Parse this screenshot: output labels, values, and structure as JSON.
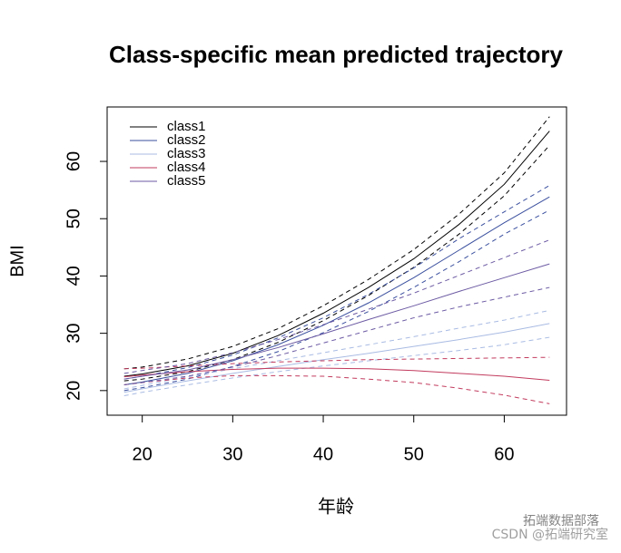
{
  "chart_data": {
    "type": "line",
    "title": "Class-specific mean predicted trajectory",
    "x_label": "年龄",
    "y_label": "BMI",
    "x": [
      18,
      20,
      25,
      30,
      35,
      40,
      45,
      50,
      55,
      60,
      65
    ],
    "series": [
      {
        "name": "class1",
        "color": "#000000",
        "values": [
          22.5,
          22.9,
          24.3,
          26.5,
          29.6,
          33.5,
          38,
          43,
          49,
          56,
          65.3
        ],
        "upper": [
          23.8,
          24.1,
          25.5,
          27.7,
          30.8,
          34.8,
          39.4,
          44.6,
          50.8,
          58,
          67.8
        ],
        "lower": [
          21.7,
          22,
          23.3,
          25.4,
          28.4,
          32.2,
          36.6,
          41.5,
          47.3,
          54,
          62.8
        ]
      },
      {
        "name": "class2",
        "color": "#3a4f9e",
        "values": [
          21,
          21.5,
          23,
          25.2,
          28,
          31.4,
          35.3,
          39.7,
          44.5,
          49.3,
          53.8
        ],
        "upper": [
          22,
          22.5,
          24,
          26.2,
          29.2,
          32.7,
          36.8,
          41.4,
          46.5,
          51.2,
          55.8
        ],
        "lower": [
          20,
          20.5,
          22,
          24.2,
          26.8,
          30.1,
          33.8,
          38,
          42.5,
          47.3,
          51.5
        ]
      },
      {
        "name": "class3",
        "color": "#a9bbe3",
        "values": [
          19.7,
          20.3,
          21.7,
          23,
          24.2,
          25.4,
          26.5,
          27.7,
          28.9,
          30.2,
          31.7
        ],
        "upper": [
          20.3,
          20.9,
          22.4,
          23.8,
          25.2,
          26.6,
          28,
          29.4,
          30.9,
          32.3,
          34
        ],
        "lower": [
          19.1,
          19.7,
          21,
          22.2,
          23.3,
          24.3,
          25.2,
          26.1,
          27,
          28,
          29.3
        ]
      },
      {
        "name": "class4",
        "color": "#c23b5e",
        "values": [
          22.4,
          22.7,
          23.3,
          23.7,
          23.9,
          23.9,
          23.8,
          23.5,
          23,
          22.5,
          21.8
        ],
        "upper": [
          23.8,
          23.9,
          24.3,
          24.7,
          25,
          25.2,
          25.4,
          25.5,
          25.6,
          25.7,
          25.8
        ],
        "lower": [
          21,
          21.4,
          22.2,
          22.6,
          22.6,
          22.5,
          22,
          21.4,
          20.4,
          19.2,
          17.7
        ]
      },
      {
        "name": "class5",
        "color": "#6c5aa3",
        "values": [
          22,
          22.5,
          23.6,
          25.4,
          27.5,
          29.9,
          32.4,
          34.8,
          37.3,
          39.7,
          42.1
        ],
        "upper": [
          23,
          23.5,
          24.7,
          26.6,
          28.9,
          31.5,
          34.2,
          37,
          40.1,
          43.2,
          46.3
        ],
        "lower": [
          21,
          21.4,
          22.5,
          24.1,
          26.1,
          28.3,
          30.5,
          32.7,
          34.6,
          36.3,
          38
        ]
      }
    ],
    "xlim": [
      16.12,
      66.88
    ],
    "xticks": [
      20,
      30,
      40,
      50,
      60
    ],
    "ylim": [
      15.7,
      69.5
    ],
    "yticks": [
      20,
      30,
      40,
      50,
      60
    ],
    "legend": "top-left",
    "watermark": [
      "拓端数据部落",
      "CSDN @拓端研究室"
    ]
  }
}
